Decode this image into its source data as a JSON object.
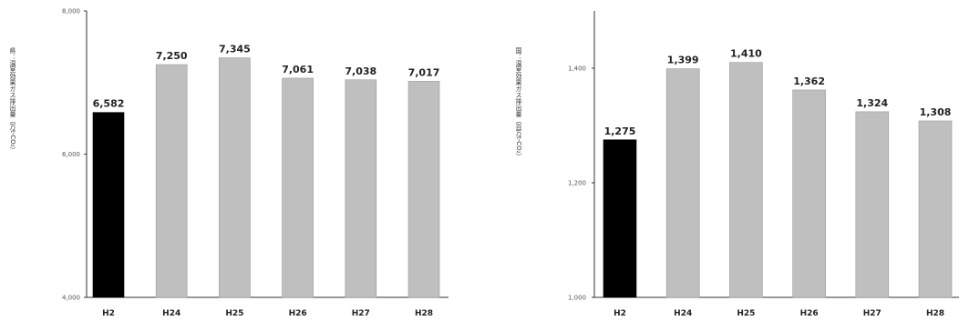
{
  "chart_data": [
    {
      "type": "bar",
      "ylabel": "県：温室効果ガス排出量（万t-CO₂）",
      "categories": [
        "H2",
        "H24",
        "H25",
        "H26",
        "H27",
        "H28"
      ],
      "values": [
        6582,
        7250,
        7345,
        7061,
        7038,
        7017
      ],
      "value_labels": [
        "6,582",
        "7,250",
        "7,345",
        "7,061",
        "7,038",
        "7,017"
      ],
      "yticks": [
        4000,
        6000,
        8000
      ],
      "ytick_labels": [
        "4,000",
        "6,000",
        "8,000"
      ],
      "ylim": [
        4000,
        8000
      ],
      "grid": false,
      "highlight_color": "#000000",
      "bar_color": "#bfbfbf"
    },
    {
      "type": "bar",
      "ylabel": "国：温室効果ガス排出量（百万t-CO₂）",
      "categories": [
        "H2",
        "H24",
        "H25",
        "H26",
        "H27",
        "H28"
      ],
      "values": [
        1275,
        1399,
        1410,
        1362,
        1324,
        1308
      ],
      "value_labels": [
        "1,275",
        "1,399",
        "1,410",
        "1,362",
        "1,324",
        "1,308"
      ],
      "yticks": [
        1000,
        1200,
        1400
      ],
      "ytick_labels": [
        "1,000",
        "1,200",
        "1,400"
      ],
      "ylim": [
        1000,
        1500
      ],
      "grid": false,
      "highlight_color": "#000000",
      "bar_color": "#bfbfbf"
    }
  ]
}
